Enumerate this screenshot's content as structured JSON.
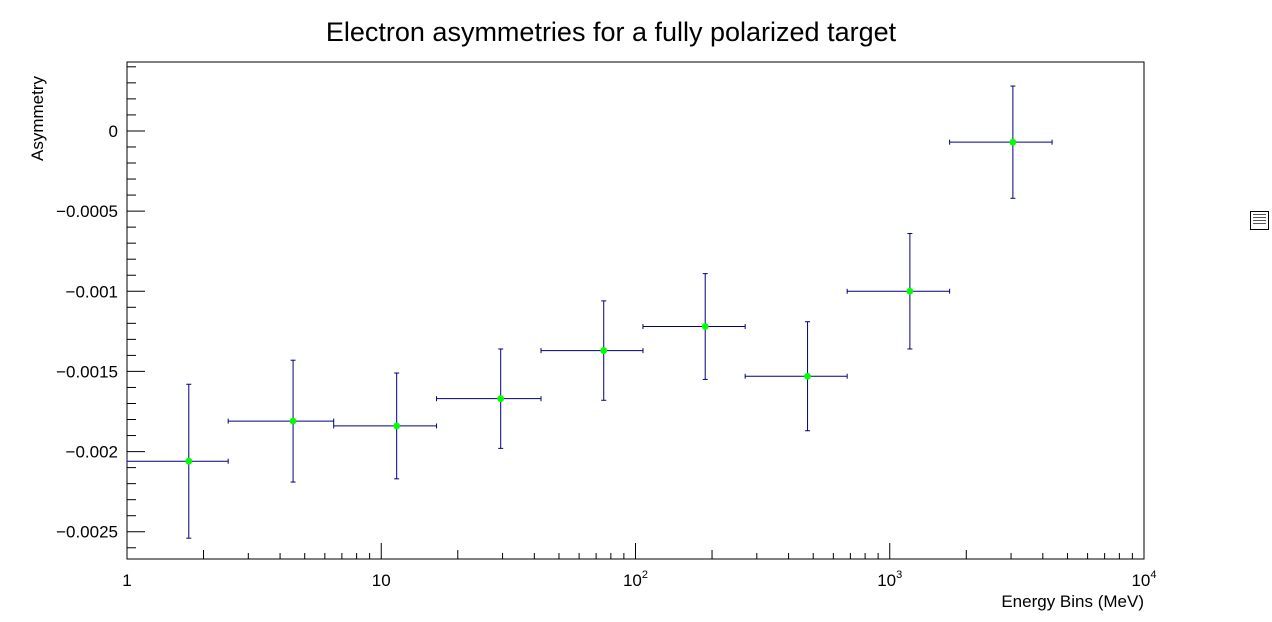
{
  "chart_data": {
    "type": "scatter",
    "title": "Electron asymmetries for a fully polarized target",
    "xlabel": "Energy Bins (MeV)",
    "ylabel": "Asymmetry",
    "xscale": "log",
    "xlim": [
      1,
      10000
    ],
    "ylim": [
      -0.00267,
      0.00043
    ],
    "x_ticks": [
      {
        "value": 1,
        "base": "1",
        "exp": ""
      },
      {
        "value": 10,
        "base": "10",
        "exp": ""
      },
      {
        "value": 100,
        "base": "10",
        "exp": "2"
      },
      {
        "value": 1000,
        "base": "10",
        "exp": "3"
      },
      {
        "value": 10000,
        "base": "10",
        "exp": "4"
      }
    ],
    "y_ticks": [
      {
        "value": 0,
        "label": "0"
      },
      {
        "value": -0.0005,
        "label": "−0.0005"
      },
      {
        "value": -0.001,
        "label": "−0.001"
      },
      {
        "value": -0.0015,
        "label": "−0.0015"
      },
      {
        "value": -0.002,
        "label": "−0.002"
      },
      {
        "value": -0.0025,
        "label": "−0.0025"
      }
    ],
    "points": [
      {
        "x": 1.75,
        "xlo": 1.0,
        "xhi": 2.5,
        "y": -0.00206,
        "yerr": 0.00048
      },
      {
        "x": 4.5,
        "xlo": 2.5,
        "xhi": 6.5,
        "y": -0.00181,
        "yerr": 0.00038
      },
      {
        "x": 11.5,
        "xlo": 6.5,
        "xhi": 16.5,
        "y": -0.00184,
        "yerr": 0.00033
      },
      {
        "x": 29.5,
        "xlo": 16.5,
        "xhi": 42.5,
        "y": -0.00167,
        "yerr": 0.00031
      },
      {
        "x": 75,
        "xlo": 42.5,
        "xhi": 107,
        "y": -0.00137,
        "yerr": 0.00031
      },
      {
        "x": 188,
        "xlo": 107,
        "xhi": 270,
        "y": -0.00122,
        "yerr": 0.00033
      },
      {
        "x": 475,
        "xlo": 270,
        "xhi": 680,
        "y": -0.00153,
        "yerr": 0.00034
      },
      {
        "x": 1200,
        "xlo": 680,
        "xhi": 1720,
        "y": -0.001,
        "yerr": 0.00036
      },
      {
        "x": 3050,
        "xlo": 1720,
        "xhi": 4350,
        "y": -7e-05,
        "yerr": 0.00035
      }
    ],
    "marker_color": "#00ff00",
    "error_bar_color": "#000080",
    "grid": false,
    "legend": "right"
  }
}
